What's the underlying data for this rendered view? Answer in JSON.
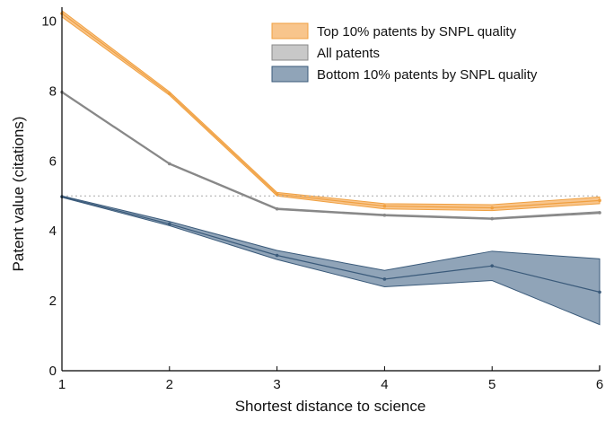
{
  "chart_data": {
    "type": "line",
    "title": "",
    "xlabel": "Shortest distance to science",
    "ylabel": "Patent value (citations)",
    "x": [
      1,
      2,
      3,
      4,
      5,
      6
    ],
    "xticks": [
      "1",
      "2",
      "3",
      "4",
      "5",
      "6"
    ],
    "yticks": [
      "0",
      "2",
      "4",
      "6",
      "8",
      "10"
    ],
    "xlim": [
      1,
      6
    ],
    "ylim": [
      0,
      10.4
    ],
    "reference_line": 5.0,
    "legend_position": "top-right",
    "grid": false,
    "series": [
      {
        "name": "Top 10% patents by SNPL quality",
        "color": "#f0a040",
        "fill": "#f8c58c",
        "values": [
          10.22,
          7.93,
          5.05,
          4.71,
          4.66,
          4.87
        ],
        "lower": [
          10.12,
          7.88,
          5.0,
          4.63,
          4.58,
          4.78
        ],
        "upper": [
          10.3,
          7.98,
          5.1,
          4.78,
          4.75,
          4.97
        ]
      },
      {
        "name": "All patents",
        "color": "#888888",
        "fill": "#c8c8c8",
        "values": [
          7.97,
          5.92,
          4.63,
          4.45,
          4.35,
          4.52
        ],
        "lower": [
          7.95,
          5.9,
          4.61,
          4.43,
          4.33,
          4.5
        ],
        "upper": [
          7.99,
          5.94,
          4.65,
          4.47,
          4.37,
          4.55
        ]
      },
      {
        "name": "Bottom 10% patents by SNPL quality",
        "color": "#3a5a7a",
        "fill": "#90a4b8",
        "values": [
          4.98,
          4.2,
          3.3,
          2.62,
          3.0,
          2.25
        ],
        "lower": [
          4.96,
          4.15,
          3.18,
          2.4,
          2.58,
          1.32
        ],
        "upper": [
          5.0,
          4.27,
          3.44,
          2.87,
          3.42,
          3.2
        ]
      }
    ]
  }
}
